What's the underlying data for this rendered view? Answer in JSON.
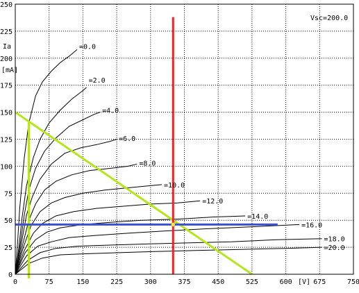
{
  "chart_data": {
    "type": "line",
    "title": "",
    "ylabel": "Ia",
    "yunit": "[mA]",
    "xunit": "[V]",
    "annotation": "Vsc=200.0",
    "xlim": [
      0,
      750
    ],
    "ylim": [
      0,
      250
    ],
    "x_ticks": [
      "0",
      "75",
      "150",
      "225",
      "300",
      "375",
      "450",
      "525",
      "600",
      "675",
      "750"
    ],
    "x_tick_values": [
      0,
      75,
      150,
      225,
      300,
      375,
      450,
      525,
      600,
      675,
      750
    ],
    "y_ticks": [
      "0",
      "25",
      "50",
      "75",
      "100",
      "125",
      "150",
      "175",
      "200",
      "225",
      "250"
    ],
    "y_tick_values": [
      0,
      25,
      50,
      75,
      100,
      125,
      150,
      175,
      200,
      225,
      250
    ],
    "grid": true,
    "curve_color": "#000000",
    "series": [
      {
        "name": "0.0",
        "label_at": [
          137,
          211
        ],
        "points": [
          [
            0,
            0
          ],
          [
            5,
            28
          ],
          [
            10,
            62
          ],
          [
            20,
            108
          ],
          [
            30,
            140
          ],
          [
            45,
            165
          ],
          [
            60,
            178
          ],
          [
            80,
            188
          ],
          [
            100,
            196
          ],
          [
            120,
            202
          ],
          [
            137,
            208
          ]
        ]
      },
      {
        "name": "2.0",
        "label_at": [
          158,
          180
        ],
        "points": [
          [
            0,
            0
          ],
          [
            8,
            25
          ],
          [
            15,
            52
          ],
          [
            25,
            82
          ],
          [
            40,
            108
          ],
          [
            55,
            125
          ],
          [
            75,
            140
          ],
          [
            100,
            152
          ],
          [
            125,
            162
          ],
          [
            150,
            170
          ],
          [
            158,
            173
          ]
        ]
      },
      {
        "name": "4.0",
        "label_at": [
          188,
          152
        ],
        "points": [
          [
            0,
            0
          ],
          [
            10,
            25
          ],
          [
            20,
            55
          ],
          [
            30,
            78
          ],
          [
            45,
            98
          ],
          [
            65,
            114
          ],
          [
            90,
            126
          ],
          [
            120,
            137
          ],
          [
            150,
            143
          ],
          [
            175,
            148
          ],
          [
            188,
            150
          ]
        ]
      },
      {
        "name": "6.0",
        "label_at": [
          225,
          126
        ],
        "points": [
          [
            0,
            0
          ],
          [
            12,
            25
          ],
          [
            25,
            55
          ],
          [
            38,
            72
          ],
          [
            55,
            88
          ],
          [
            80,
            102
          ],
          [
            110,
            112
          ],
          [
            145,
            117
          ],
          [
            180,
            120
          ],
          [
            210,
            123
          ],
          [
            225,
            125
          ]
        ]
      },
      {
        "name": "8.0",
        "label_at": [
          270,
          103
        ],
        "points": [
          [
            0,
            0
          ],
          [
            15,
            25
          ],
          [
            30,
            50
          ],
          [
            45,
            65
          ],
          [
            65,
            78
          ],
          [
            90,
            86
          ],
          [
            125,
            92
          ],
          [
            165,
            96
          ],
          [
            210,
            98
          ],
          [
            250,
            100
          ],
          [
            270,
            102
          ]
        ]
      },
      {
        "name": "10.0",
        "label_at": [
          325,
          83
        ],
        "points": [
          [
            0,
            0
          ],
          [
            18,
            25
          ],
          [
            35,
            45
          ],
          [
            55,
            58
          ],
          [
            80,
            66
          ],
          [
            110,
            71
          ],
          [
            150,
            75
          ],
          [
            200,
            78
          ],
          [
            250,
            80
          ],
          [
            300,
            82
          ],
          [
            325,
            83
          ]
        ]
      },
      {
        "name": "12.0",
        "label_at": [
          410,
          68
        ],
        "points": [
          [
            0,
            0
          ],
          [
            20,
            22
          ],
          [
            40,
            38
          ],
          [
            60,
            47
          ],
          [
            90,
            54
          ],
          [
            130,
            58
          ],
          [
            180,
            61
          ],
          [
            240,
            63
          ],
          [
            300,
            65
          ],
          [
            360,
            66
          ],
          [
            410,
            68
          ]
        ]
      },
      {
        "name": "14.0",
        "label_at": [
          510,
          54
        ],
        "points": [
          [
            0,
            0
          ],
          [
            22,
            20
          ],
          [
            45,
            32
          ],
          [
            70,
            39
          ],
          [
            100,
            43
          ],
          [
            150,
            46
          ],
          [
            210,
            48
          ],
          [
            280,
            50
          ],
          [
            360,
            51
          ],
          [
            440,
            53
          ],
          [
            510,
            54
          ]
        ]
      },
      {
        "name": "16.0",
        "label_at": [
          630,
          46
        ],
        "points": [
          [
            0,
            0
          ],
          [
            25,
            17
          ],
          [
            50,
            26
          ],
          [
            80,
            30
          ],
          [
            120,
            34
          ],
          [
            180,
            36
          ],
          [
            250,
            38
          ],
          [
            330,
            40
          ],
          [
            420,
            42
          ],
          [
            530,
            44
          ],
          [
            630,
            46
          ]
        ]
      },
      {
        "name": "18.0",
        "label_at": [
          680,
          33
        ],
        "points": [
          [
            0,
            0
          ],
          [
            28,
            13
          ],
          [
            55,
            20
          ],
          [
            90,
            24
          ],
          [
            140,
            26
          ],
          [
            210,
            27
          ],
          [
            290,
            28
          ],
          [
            380,
            29
          ],
          [
            480,
            30
          ],
          [
            580,
            32
          ],
          [
            680,
            33
          ]
        ]
      },
      {
        "name": "20.0",
        "label_at": [
          680,
          25
        ],
        "points": [
          [
            0,
            0
          ],
          [
            30,
            10
          ],
          [
            60,
            15
          ],
          [
            100,
            18
          ],
          [
            160,
            19
          ],
          [
            230,
            20
          ],
          [
            310,
            21
          ],
          [
            400,
            22
          ],
          [
            500,
            23
          ],
          [
            600,
            24
          ],
          [
            680,
            25
          ]
        ]
      }
    ],
    "overlays": {
      "load_line": {
        "color": "#b5e61d",
        "points": [
          [
            0,
            150
          ],
          [
            525,
            0
          ]
        ]
      },
      "vertical_left": {
        "color": "#b5e61d",
        "x": 30,
        "y_range": [
          0,
          142
        ]
      },
      "operating_voltage": {
        "color": "#e8262a",
        "x": 350,
        "y_range": [
          0,
          238
        ]
      },
      "operating_current": {
        "color": "#3b4fcf",
        "y": 46,
        "x_range": [
          0,
          582
        ]
      },
      "operating_point": {
        "color": "#f6e84b",
        "x": 350,
        "y": 46
      }
    }
  }
}
